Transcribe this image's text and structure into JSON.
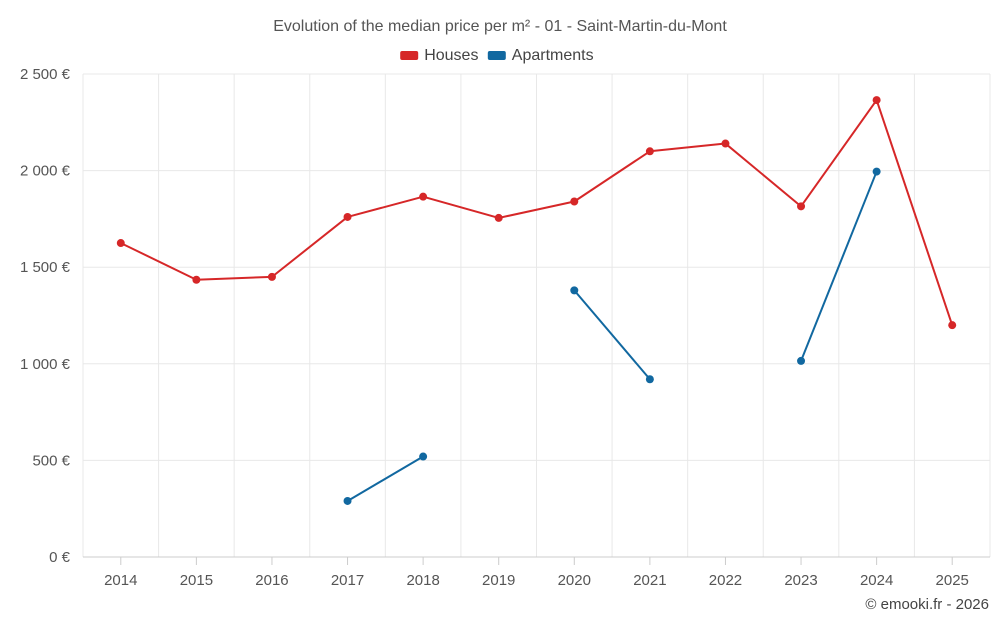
{
  "chart_data": {
    "type": "line",
    "title": "Evolution of the median price per m² - 01 - Saint-Martin-du-Mont",
    "categories": [
      "2014",
      "2015",
      "2016",
      "2017",
      "2018",
      "2019",
      "2020",
      "2021",
      "2022",
      "2023",
      "2024",
      "2025"
    ],
    "ylim": [
      0,
      2500
    ],
    "yticks": [
      0,
      500,
      1000,
      1500,
      2000,
      2500
    ],
    "ytick_labels": [
      "0 €",
      "500 €",
      "1 000 €",
      "1 500 €",
      "2 000 €",
      "2 500 €"
    ],
    "grid": true,
    "legend_position": "top-center",
    "series": [
      {
        "name": "Houses",
        "color": "#d62728",
        "values": [
          1625,
          1435,
          1450,
          1760,
          1865,
          1755,
          1840,
          2100,
          2140,
          1815,
          2365,
          1200
        ]
      },
      {
        "name": "Apartments",
        "color": "#1168a0",
        "values": [
          null,
          null,
          null,
          290,
          520,
          null,
          1380,
          920,
          null,
          1015,
          1995,
          null
        ]
      }
    ]
  },
  "credit": "© emooki.fr - 2026"
}
